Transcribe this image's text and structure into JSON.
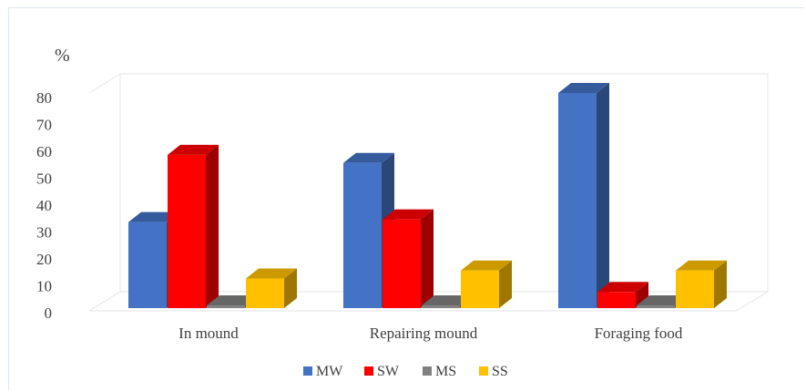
{
  "chart_data": {
    "type": "bar",
    "variant": "3d-clustered-column",
    "unit_label": "%",
    "categories": [
      "In mound",
      "Repairing mound",
      "Foraging food"
    ],
    "series": [
      {
        "name": "MW",
        "color": "#4472c4",
        "values": [
          32,
          54,
          80
        ]
      },
      {
        "name": "SW",
        "color": "#ff0000",
        "values": [
          57,
          33,
          6
        ]
      },
      {
        "name": "MS",
        "color": "#808080",
        "values": [
          1,
          1,
          1
        ]
      },
      {
        "name": "SS",
        "color": "#ffc000",
        "values": [
          11,
          14,
          14
        ]
      }
    ],
    "y_ticks": [
      0,
      10,
      20,
      30,
      40,
      50,
      60,
      70,
      80
    ],
    "ylim": [
      0,
      80
    ],
    "grid": false,
    "legend_position": "bottom"
  }
}
